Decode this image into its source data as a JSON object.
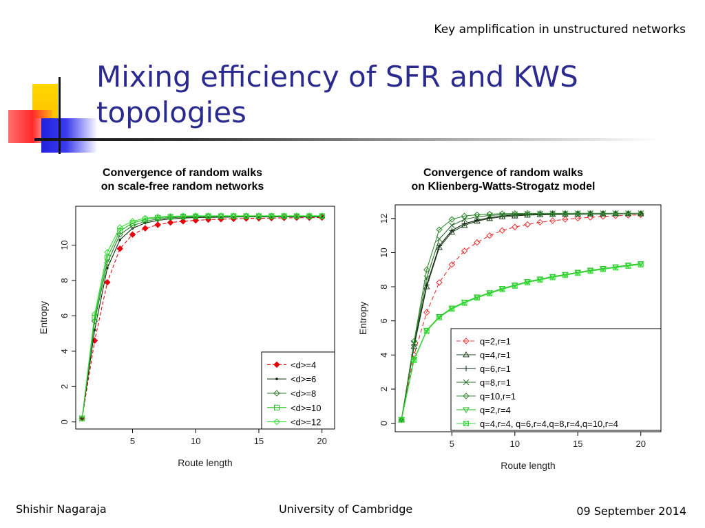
{
  "slide": {
    "header": "Key amplification in unstructured networks",
    "title_line1": "Mixing efficiency of SFR and KWS",
    "title_line2": "topologies",
    "footer_left": "Shishir Nagaraja",
    "footer_center": "University of Cambridge",
    "footer_right": "09 September 2014"
  },
  "chart_data": [
    {
      "type": "line",
      "title": "Convergence of random walks\non scale-free random networks",
      "xlabel": "Route length",
      "ylabel": "Entropy",
      "xlim": [
        0.5,
        21
      ],
      "ylim": [
        -0.4,
        12.2
      ],
      "xticks": [
        5,
        10,
        15,
        20
      ],
      "yticks": [
        0,
        2,
        4,
        6,
        8,
        10
      ],
      "legend_position": "bottom-right",
      "x": [
        1,
        2,
        3,
        4,
        5,
        6,
        7,
        8,
        9,
        10,
        11,
        12,
        13,
        14,
        15,
        16,
        17,
        18,
        19,
        20
      ],
      "series": [
        {
          "name": "<d>=4",
          "color": "#e8000b",
          "dash": "5,3",
          "marker": "diamond-filled",
          "values": [
            0.2,
            4.6,
            7.9,
            9.8,
            10.6,
            10.95,
            11.15,
            11.28,
            11.35,
            11.4,
            11.44,
            11.47,
            11.49,
            11.51,
            11.52,
            11.53,
            11.54,
            11.55,
            11.55,
            11.56
          ]
        },
        {
          "name": "<d>=6",
          "color": "#0d2a0d",
          "dash": "",
          "marker": "dot",
          "values": [
            0.2,
            5.2,
            8.7,
            10.3,
            10.95,
            11.25,
            11.4,
            11.48,
            11.53,
            11.56,
            11.57,
            11.58,
            11.59,
            11.6,
            11.6,
            11.6,
            11.6,
            11.6,
            11.6,
            11.6
          ]
        },
        {
          "name": "<d>=8",
          "color": "#2f7a2f",
          "dash": "",
          "marker": "diamond-open",
          "values": [
            0.2,
            5.7,
            9.0,
            10.6,
            11.1,
            11.35,
            11.48,
            11.55,
            11.58,
            11.6,
            11.61,
            11.62,
            11.62,
            11.62,
            11.62,
            11.62,
            11.62,
            11.62,
            11.62,
            11.62
          ]
        },
        {
          "name": "<d>=10",
          "color": "#22bb22",
          "dash": "",
          "marker": "square-open",
          "values": [
            0.2,
            5.9,
            9.3,
            10.8,
            11.25,
            11.45,
            11.55,
            11.6,
            11.62,
            11.63,
            11.64,
            11.64,
            11.64,
            11.64,
            11.64,
            11.64,
            11.64,
            11.64,
            11.64,
            11.64
          ]
        },
        {
          "name": "<d>=12",
          "color": "#33dd33",
          "dash": "",
          "marker": "diamond-open",
          "values": [
            0.2,
            6.1,
            9.6,
            11.0,
            11.35,
            11.52,
            11.6,
            11.63,
            11.65,
            11.66,
            11.66,
            11.66,
            11.66,
            11.66,
            11.66,
            11.66,
            11.66,
            11.66,
            11.66,
            11.66
          ]
        }
      ]
    },
    {
      "type": "line",
      "title": "Convergence of random walks\non Klienberg-Watts-Strogatz model",
      "xlabel": "Route length",
      "ylabel": "Entropy",
      "xlim": [
        0.5,
        21.6
      ],
      "ylim": [
        -0.5,
        12.8
      ],
      "xticks": [
        5,
        10,
        15,
        20
      ],
      "yticks": [
        0,
        2,
        4,
        6,
        8,
        10,
        12
      ],
      "legend_position": "bottom-right",
      "x": [
        1,
        2,
        3,
        4,
        5,
        6,
        7,
        8,
        9,
        10,
        11,
        12,
        13,
        14,
        15,
        16,
        17,
        18,
        19,
        20
      ],
      "series": [
        {
          "name": "q=2,r=1",
          "color": "#e83030",
          "dash": "6,4",
          "marker": "diamond-open",
          "values": [
            0.2,
            4.0,
            6.5,
            8.25,
            9.3,
            10.1,
            10.6,
            11.0,
            11.3,
            11.5,
            11.65,
            11.78,
            11.87,
            11.95,
            12.02,
            12.07,
            12.12,
            12.16,
            12.19,
            12.22
          ]
        },
        {
          "name": "q=4,r=1",
          "color": "#1a3d1a",
          "dash": "",
          "marker": "triangle-up",
          "values": [
            0.2,
            4.5,
            8.0,
            10.3,
            11.2,
            11.6,
            11.85,
            12.0,
            12.1,
            12.15,
            12.2,
            12.22,
            12.24,
            12.25,
            12.26,
            12.27,
            12.27,
            12.28,
            12.28,
            12.28
          ]
        },
        {
          "name": "q=6,r=1",
          "color": "#0d260d",
          "dash": "",
          "marker": "plus",
          "values": [
            0.2,
            4.6,
            8.1,
            10.4,
            11.3,
            11.7,
            11.9,
            12.05,
            12.15,
            12.2,
            12.22,
            12.24,
            12.26,
            12.27,
            12.28,
            12.28,
            12.28,
            12.29,
            12.29,
            12.29
          ]
        },
        {
          "name": "q=8,r=1",
          "color": "#2a6e2a",
          "dash": "",
          "marker": "cross",
          "values": [
            0.2,
            4.7,
            8.5,
            10.8,
            11.6,
            11.95,
            12.1,
            12.18,
            12.22,
            12.25,
            12.27,
            12.28,
            12.29,
            12.29,
            12.3,
            12.3,
            12.3,
            12.3,
            12.3,
            12.3
          ]
        },
        {
          "name": "q=10,r=1",
          "color": "#2e8b2e",
          "dash": "",
          "marker": "diamond-open",
          "values": [
            0.2,
            4.8,
            9.0,
            11.35,
            11.95,
            12.15,
            12.22,
            12.26,
            12.28,
            12.29,
            12.3,
            12.3,
            12.3,
            12.3,
            12.3,
            12.3,
            12.3,
            12.3,
            12.3,
            12.3
          ]
        },
        {
          "name": "q=2,r=4",
          "color": "#22bb22",
          "dash": "",
          "marker": "triangle-down",
          "values": [
            0.2,
            3.75,
            5.45,
            6.25,
            6.75,
            7.1,
            7.4,
            7.65,
            7.9,
            8.1,
            8.3,
            8.45,
            8.6,
            8.72,
            8.85,
            8.97,
            9.07,
            9.17,
            9.27,
            9.35
          ]
        },
        {
          "name": "q=4,r=4, q=6,r=4,q=8,r=4,q=10,r=4",
          "color": "#33dd33",
          "dash": "",
          "marker": "square-x",
          "values": [
            0.2,
            3.7,
            5.4,
            6.2,
            6.7,
            7.05,
            7.35,
            7.6,
            7.85,
            8.05,
            8.25,
            8.4,
            8.55,
            8.68,
            8.8,
            8.92,
            9.02,
            9.12,
            9.22,
            9.3
          ]
        }
      ]
    }
  ]
}
